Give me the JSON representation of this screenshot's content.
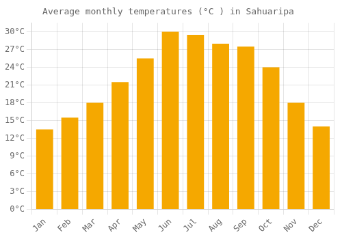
{
  "chart_data": {
    "type": "bar",
    "title": "Average monthly temperatures (°C ) in Sahuaripa",
    "categories": [
      "Jan",
      "Feb",
      "Mar",
      "Apr",
      "May",
      "Jun",
      "Jul",
      "Aug",
      "Sep",
      "Oct",
      "Nov",
      "Dec"
    ],
    "values": [
      13.5,
      15.5,
      18.0,
      21.5,
      25.5,
      30.0,
      29.5,
      28.0,
      27.5,
      24.0,
      18.0,
      14.0
    ],
    "color": "#F5A800",
    "ylim": [
      0,
      31.5
    ],
    "yticks": [
      {
        "value": 0,
        "label": "0°C"
      },
      {
        "value": 3,
        "label": "3°C"
      },
      {
        "value": 6,
        "label": "6°C"
      },
      {
        "value": 9,
        "label": "9°C"
      },
      {
        "value": 12,
        "label": "12°C"
      },
      {
        "value": 15,
        "label": "15°C"
      },
      {
        "value": 18,
        "label": "18°C"
      },
      {
        "value": 21,
        "label": "21°C"
      },
      {
        "value": 24,
        "label": "24°C"
      },
      {
        "value": 27,
        "label": "27°C"
      },
      {
        "value": 30,
        "label": "30°C"
      }
    ],
    "grid": true
  }
}
